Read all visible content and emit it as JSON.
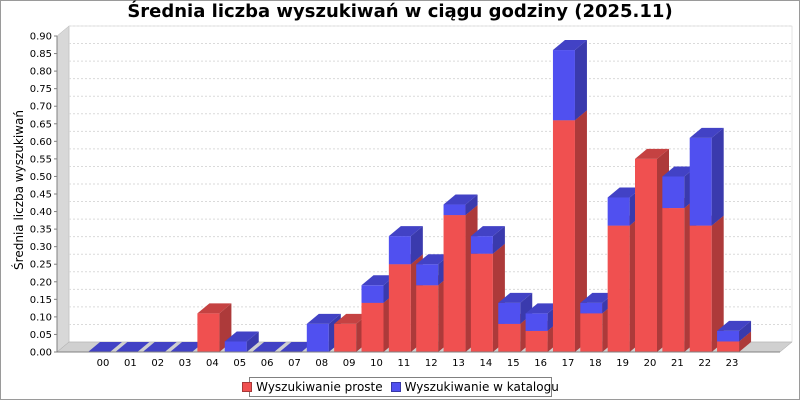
{
  "chart_data": {
    "type": "bar",
    "stacked": true,
    "three_d": true,
    "title": "Średnia liczba wyszukiwań w ciągu godziny (2025.11)",
    "xlabel": "",
    "ylabel": "Średnia liczba wyszukiwań",
    "ylim": [
      0,
      0.9
    ],
    "yticks": [
      "0.00",
      "0.05",
      "0.10",
      "0.15",
      "0.20",
      "0.25",
      "0.30",
      "0.35",
      "0.40",
      "0.45",
      "0.50",
      "0.55",
      "0.60",
      "0.65",
      "0.70",
      "0.75",
      "0.80",
      "0.85",
      "0.90"
    ],
    "grid": true,
    "legend_position": "bottom",
    "categories": [
      "00",
      "01",
      "02",
      "03",
      "04",
      "05",
      "06",
      "07",
      "08",
      "09",
      "10",
      "11",
      "12",
      "13",
      "14",
      "15",
      "16",
      "17",
      "18",
      "19",
      "20",
      "21",
      "22",
      "23"
    ],
    "series": [
      {
        "name": "Wyszukiwanie proste",
        "color": "#f05050",
        "values": [
          0,
          0,
          0,
          0,
          0.11,
          0,
          0,
          0,
          0,
          0.08,
          0.14,
          0.25,
          0.19,
          0.39,
          0.28,
          0.08,
          0.06,
          0.66,
          0.11,
          0.36,
          0.55,
          0.41,
          0.36,
          0.03
        ]
      },
      {
        "name": "Wyszukiwanie w katalogu",
        "color": "#5050f0",
        "values": [
          0,
          0,
          0,
          0,
          0,
          0.03,
          0,
          0,
          0.08,
          0,
          0.05,
          0.08,
          0.06,
          0.03,
          0.05,
          0.06,
          0.05,
          0.2,
          0.03,
          0.08,
          0,
          0.09,
          0.25,
          0.03
        ]
      }
    ]
  }
}
